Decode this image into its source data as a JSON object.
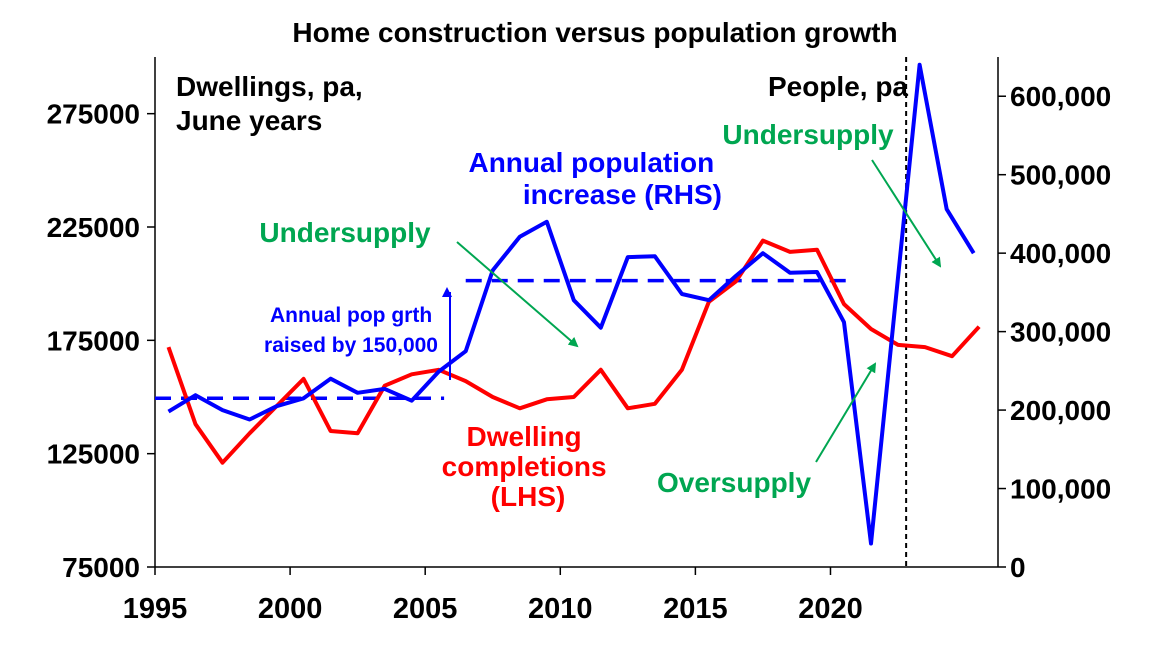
{
  "chart_data": {
    "type": "line",
    "title": "Home construction versus population growth",
    "left_axis_label": "Dwellings, pa, June years",
    "left_axis_label_lines": [
      "Dwellings, pa,",
      "June years"
    ],
    "right_axis_label": "People, pa",
    "left_ylim": [
      75000,
      300000
    ],
    "right_ylim": [
      0,
      650000
    ],
    "left_ticks": [
      75000,
      125000,
      175000,
      225000,
      275000
    ],
    "left_tick_labels": [
      "75000",
      "125000",
      "175000",
      "225000",
      "275000"
    ],
    "right_ticks": [
      0,
      100000,
      200000,
      300000,
      400000,
      500000,
      600000
    ],
    "right_tick_labels": [
      "0",
      "100,000",
      "200,000",
      "300,000",
      "400,000",
      "500,000",
      "600,000"
    ],
    "x_ticks": [
      1995,
      2000,
      2005,
      2010,
      2015,
      2020
    ],
    "x_tick_labels": [
      "1995",
      "2000",
      "2005",
      "2010",
      "2015",
      "2020"
    ],
    "xlim": [
      1995,
      2026.2
    ],
    "series": [
      {
        "name": "Dwelling completions (LHS)",
        "axis": "left",
        "color": "#ff0000",
        "x": [
          1995.5,
          1996.5,
          1997.5,
          1998.5,
          1999.5,
          2000.5,
          2001.5,
          2002.5,
          2003.5,
          2004.5,
          2005.5,
          2006.5,
          2007.5,
          2008.5,
          2009.5,
          2010.5,
          2011.5,
          2012.5,
          2013.5,
          2014.5,
          2015.5,
          2016.5,
          2017.5,
          2018.5,
          2019.5,
          2020.5,
          2021.5,
          2022.5,
          2023.5,
          2024.5,
          2025.5
        ],
        "values": [
          172000,
          138000,
          121000,
          134000,
          146000,
          158000,
          135000,
          134000,
          155000,
          160000,
          162000,
          157000,
          150000,
          145000,
          149000,
          150000,
          162000,
          145000,
          147000,
          162000,
          192000,
          201000,
          219000,
          214000,
          215000,
          191000,
          180000,
          173000,
          172000,
          168000,
          181000
        ]
      },
      {
        "name": "Annual population increase (RHS)",
        "axis": "right",
        "color": "#0000ff",
        "x": [
          1995.5,
          1996.5,
          1997.5,
          1998.5,
          1999.5,
          2000.5,
          2001.5,
          2002.5,
          2003.5,
          2004.5,
          2005.5,
          2006.5,
          2007.5,
          2008.5,
          2009.5,
          2010.5,
          2011.5,
          2012.5,
          2013.5,
          2014.5,
          2015.5,
          2016.5,
          2017.5,
          2018.5,
          2019.5,
          2020.5,
          2021.5,
          2023.3,
          2024.3,
          2025.3
        ],
        "values": [
          198000,
          219000,
          200000,
          188000,
          205000,
          215000,
          240000,
          222000,
          227000,
          212000,
          249000,
          275000,
          378000,
          421000,
          440000,
          340000,
          305000,
          395000,
          396000,
          348000,
          340000,
          371000,
          400000,
          375000,
          376000,
          312000,
          30000,
          640000,
          456000,
          400000
        ]
      }
    ],
    "reference_lines": [
      {
        "name": "pre-2006 average",
        "axis": "right",
        "value": 215000,
        "x_range": [
          1995,
          2005.7
        ]
      },
      {
        "name": "post-2006 average",
        "axis": "right",
        "value": 365000,
        "x_range": [
          2006.5,
          2020.6
        ]
      },
      {
        "name": "forecast divider",
        "x": 2022.8
      }
    ],
    "annotations": {
      "population_label": [
        "Annual population",
        "increase (RHS)"
      ],
      "dwelling_label": [
        "Dwelling",
        "completions",
        "(LHS)"
      ],
      "pop_growth_note": [
        "Annual pop grth",
        "raised by 150,000"
      ],
      "undersupply_1": "Undersupply",
      "undersupply_2": "Undersupply",
      "oversupply": "Oversupply"
    },
    "colors": {
      "red": "#ff0000",
      "blue": "#0000ff",
      "green": "#00a651",
      "black": "#000000"
    }
  }
}
